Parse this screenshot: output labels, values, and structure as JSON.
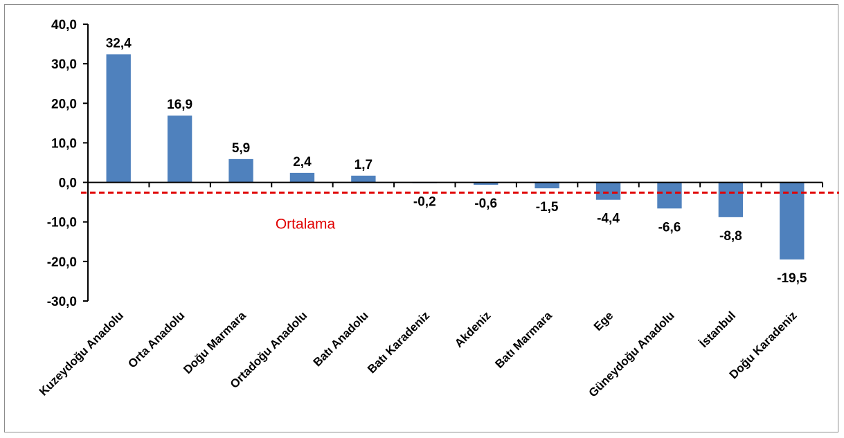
{
  "chart_data": {
    "type": "bar",
    "categories": [
      "Kuzeydoğu Anadolu",
      "Orta Anadolu",
      "Doğu Marmara",
      "Ortadoğu Anadolu",
      "Batı Anadolu",
      "Batı Karadeniz",
      "Akdeniz",
      "Batı Marmara",
      "Ege",
      "Güneydoğu Anadolu",
      "İstanbul",
      "Doğu Karadeniz"
    ],
    "values": [
      32.4,
      16.9,
      5.9,
      2.4,
      1.7,
      -0.2,
      -0.6,
      -1.5,
      -4.4,
      -6.6,
      -8.8,
      -19.5
    ],
    "value_labels": [
      "32,4",
      "16,9",
      "5,9",
      "2,4",
      "1,7",
      "-0,2",
      "-0,6",
      "-1,5",
      "-4,4",
      "-6,6",
      "-8,8",
      "-19,5"
    ],
    "ylim": [
      -30,
      40
    ],
    "yticks": [
      40,
      30,
      20,
      10,
      0,
      -10,
      -20,
      -30
    ],
    "ytick_labels": [
      "40,0",
      "30,0",
      "20,0",
      "10,0",
      "0,0",
      "-10,0",
      "-20,0",
      "-30,0"
    ],
    "reference_line": {
      "label": "Ortalama",
      "value": -2.6,
      "color": "#e00000",
      "style": "dashed"
    },
    "bar_color": "#4f81bd",
    "grid": false,
    "legend": "none",
    "title": "",
    "xlabel": "",
    "ylabel": ""
  }
}
